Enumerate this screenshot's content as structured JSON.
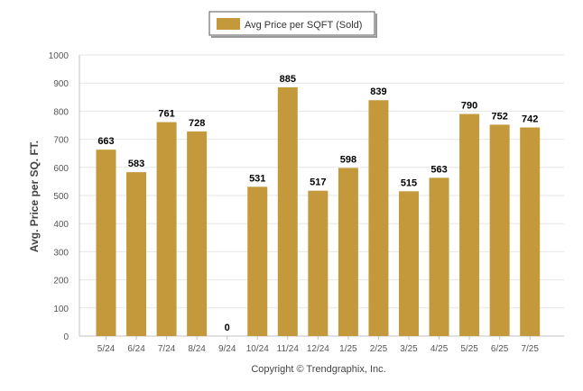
{
  "chart_data": {
    "type": "bar",
    "legend": "Avg Price per SQFT (Sold)",
    "legend_position": "top-center",
    "ylabel": "Avg. Price per SQ. FT.",
    "xlabel": "",
    "ylim": [
      0,
      1000
    ],
    "yticks": [
      "0",
      "100",
      "200",
      "300",
      "400",
      "500",
      "600",
      "700",
      "800",
      "900",
      "1000"
    ],
    "grid": true,
    "categories": [
      "5/24",
      "6/24",
      "7/24",
      "8/24",
      "9/24",
      "10/24",
      "11/24",
      "12/24",
      "1/25",
      "2/25",
      "3/25",
      "4/25",
      "5/25",
      "6/25",
      "7/25"
    ],
    "series": [
      {
        "name": "Avg Price per SQFT (Sold)",
        "values": [
          663,
          583,
          761,
          728,
          0,
          531,
          885,
          517,
          598,
          839,
          515,
          563,
          790,
          752,
          742
        ],
        "labels": [
          "663",
          "583",
          "761",
          "728",
          "0",
          "531",
          "885",
          "517",
          "598",
          "839",
          "515",
          "563",
          "790",
          "752",
          "742"
        ]
      }
    ],
    "colors": {
      "bar": "#c4993c",
      "grid": "#e6e6e6",
      "axis": "#c0c0c0"
    }
  },
  "footer": {
    "copyright": "Copyright © Trendgraphix, Inc."
  }
}
